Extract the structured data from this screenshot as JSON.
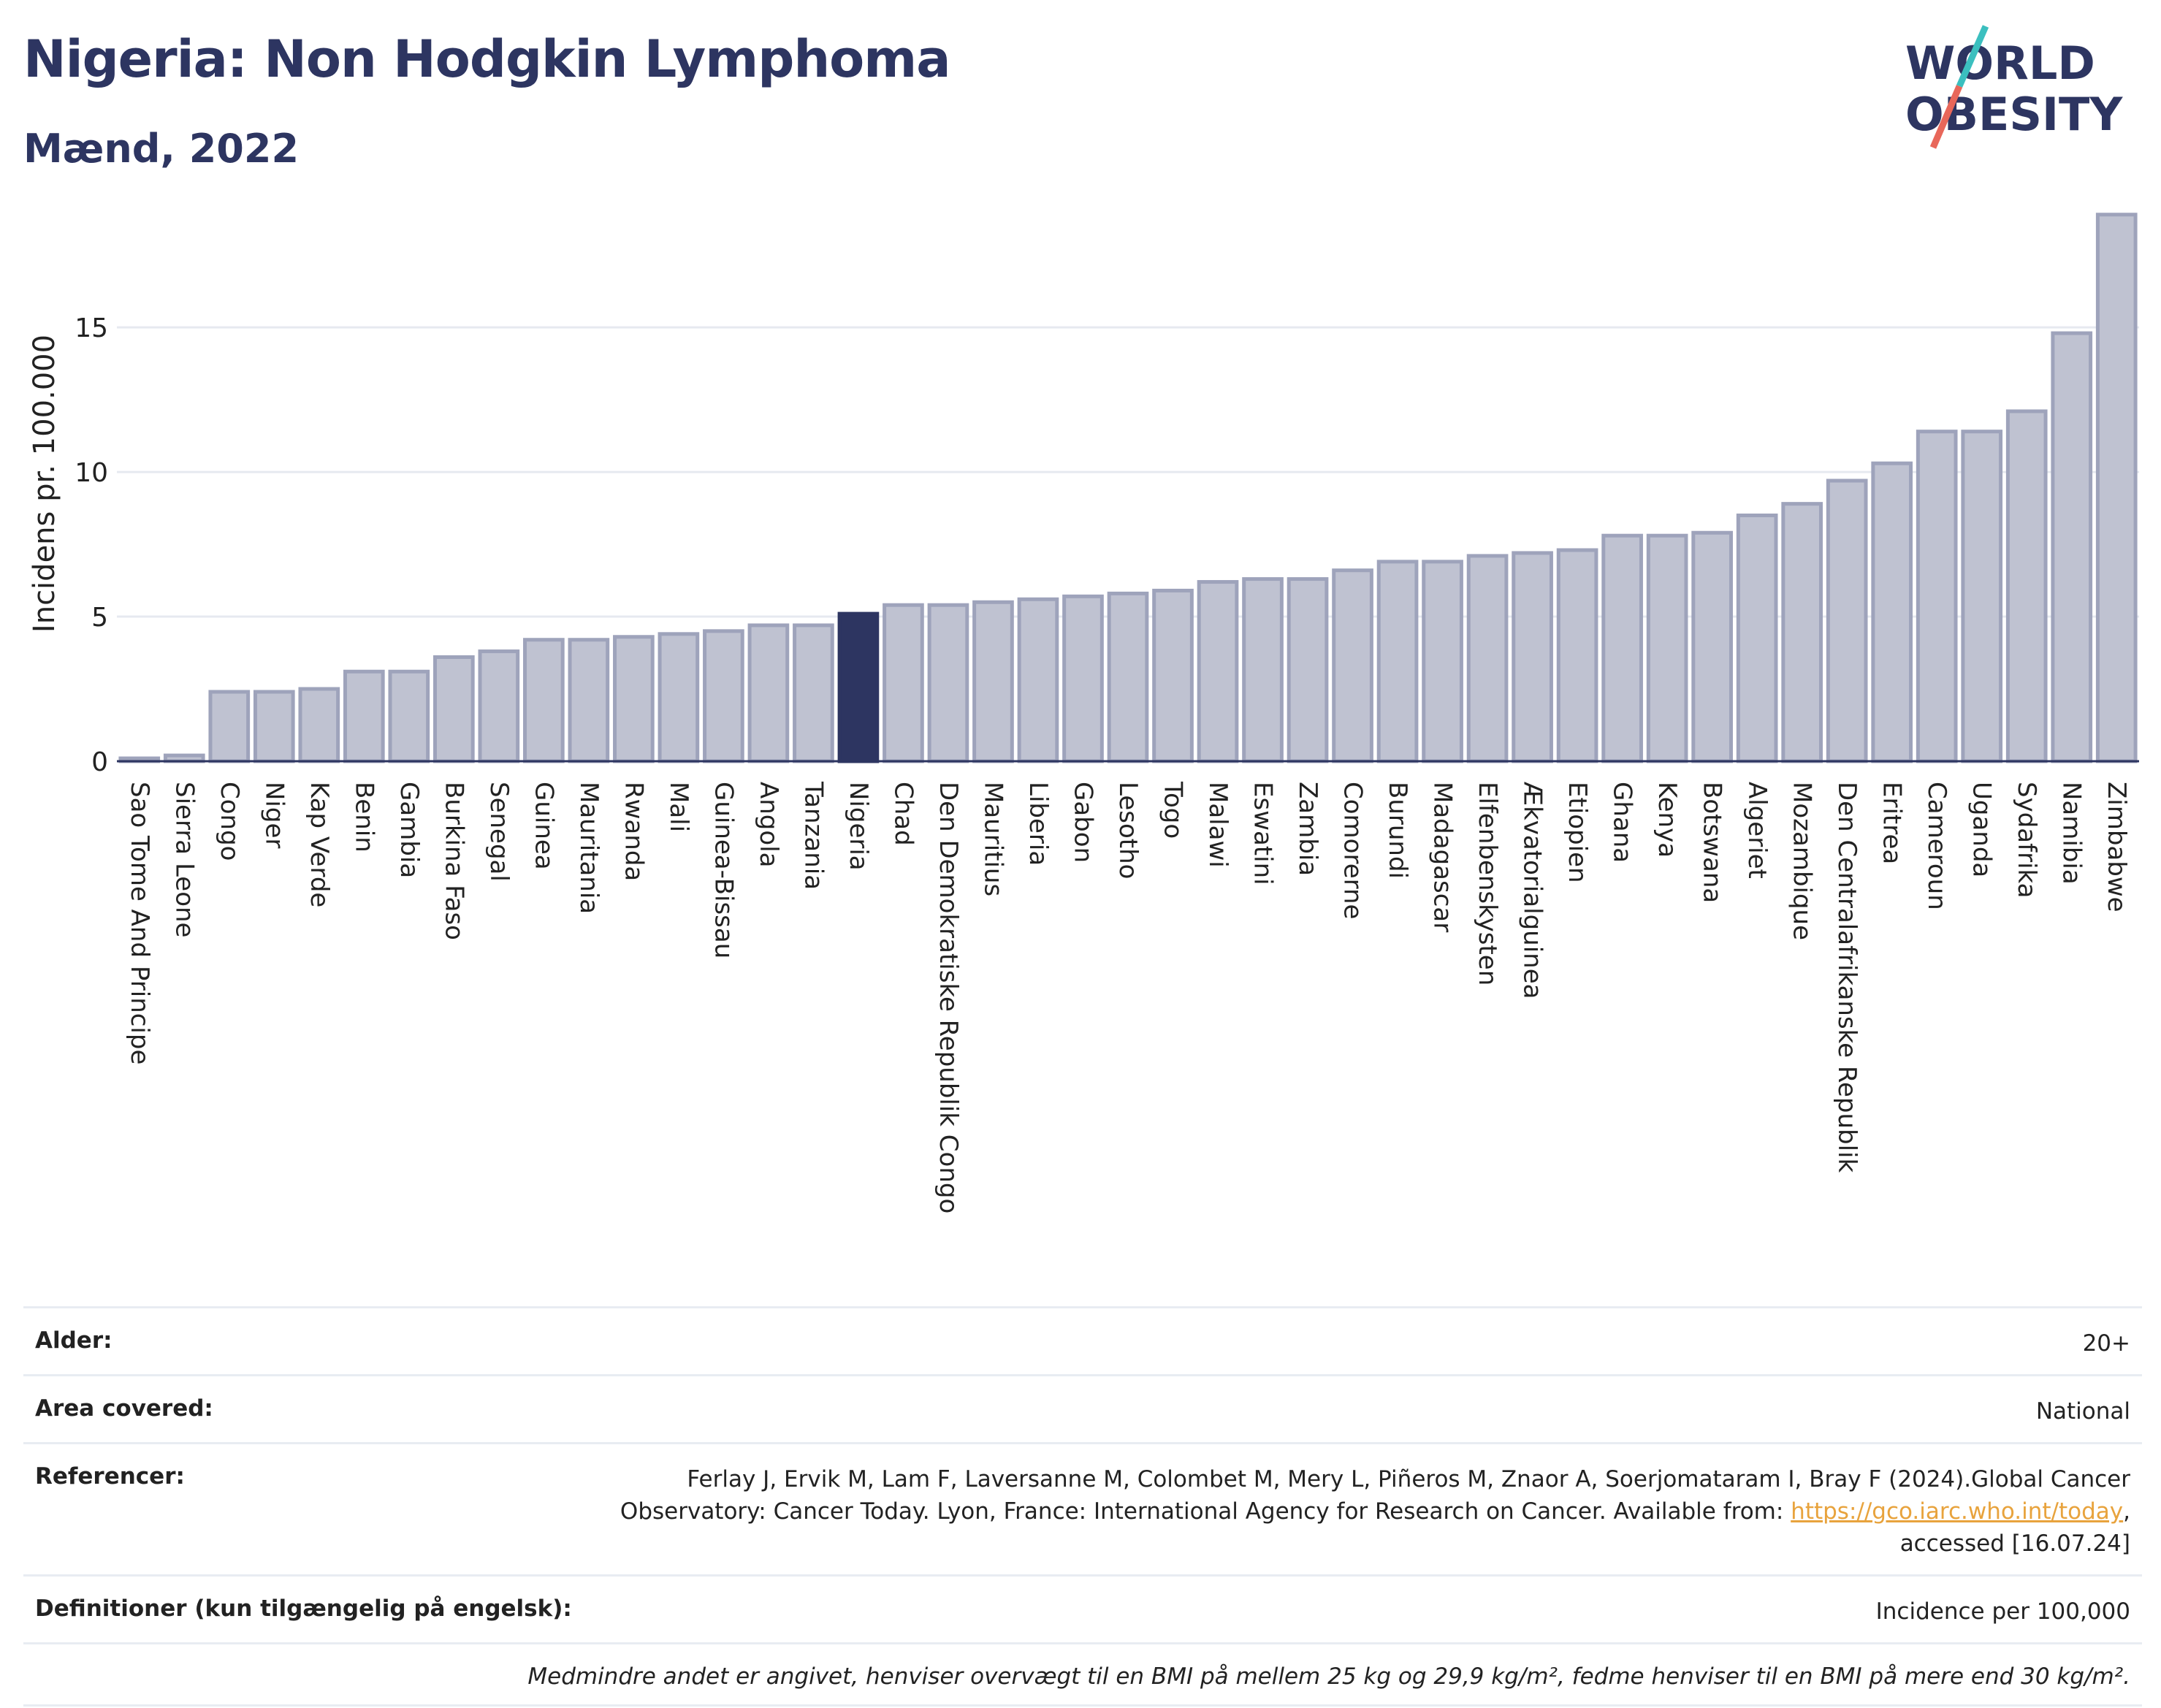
{
  "header": {
    "title": "Nigeria: Non Hodgkin Lymphoma",
    "subtitle": "Mænd, 2022"
  },
  "logo": {
    "line1": "WORLD",
    "line2": "OBESITY",
    "slash_colors": [
      "#3bbfbf",
      "#e8675a"
    ]
  },
  "colors": {
    "bar_fill": "#bfc2d1",
    "bar_stroke": "#9ea3bb",
    "highlight": "#2d3561",
    "text": "#2d3561",
    "link": "#e8a33d"
  },
  "chart_data": {
    "type": "bar",
    "ylabel": "Incidens pr. 100.000",
    "ylim": [
      0,
      19.5
    ],
    "yticks": [
      0,
      5,
      10,
      15
    ],
    "grid": true,
    "highlight": "Nigeria",
    "categories": [
      "Sao Tome And Principe",
      "Sierra Leone",
      "Congo",
      "Niger",
      "Kap Verde",
      "Benin",
      "Gambia",
      "Burkina Faso",
      "Senegal",
      "Guinea",
      "Mauritania",
      "Rwanda",
      "Mali",
      "Guinea-Bissau",
      "Angola",
      "Tanzania",
      "Nigeria",
      "Chad",
      "Den Demokratiske Republik Congo",
      "Mauritius",
      "Liberia",
      "Gabon",
      "Lesotho",
      "Togo",
      "Malawi",
      "Eswatini",
      "Zambia",
      "Comorerne",
      "Burundi",
      "Madagascar",
      "Elfenbenskysten",
      "Ækvatorialguinea",
      "Etiopien",
      "Ghana",
      "Kenya",
      "Botswana",
      "Algeriet",
      "Mozambique",
      "Den Centralafrikanske Republik",
      "Eritrea",
      "Cameroun",
      "Uganda",
      "Sydafrika",
      "Namibia",
      "Zimbabwe"
    ],
    "values": [
      0.1,
      0.2,
      2.4,
      2.4,
      2.5,
      3.1,
      3.1,
      3.6,
      3.8,
      4.2,
      4.2,
      4.3,
      4.4,
      4.5,
      4.7,
      4.7,
      5.1,
      5.4,
      5.4,
      5.5,
      5.6,
      5.7,
      5.8,
      5.9,
      6.2,
      6.3,
      6.3,
      6.6,
      6.9,
      6.9,
      7.1,
      7.2,
      7.3,
      7.8,
      7.8,
      7.9,
      8.5,
      8.9,
      9.7,
      10.3,
      11.4,
      11.4,
      12.1,
      14.8,
      18.9
    ]
  },
  "info": {
    "age_label": "Alder:",
    "age_value": "20+",
    "area_label": "Area covered:",
    "area_value": "National",
    "refs_label": "Referencer:",
    "refs_text1": "Ferlay J, Ervik M, Lam F, Laversanne M, Colombet M, Mery L, Piñeros M, Znaor A, Soerjomataram I, Bray F (2024).Global Cancer",
    "refs_text2": "Observatory: Cancer Today. Lyon, France: International Agency for Research on Cancer. Available from: ",
    "refs_link": "https://gco.iarc.who.int/today",
    "refs_text3": ",",
    "refs_text4": "accessed [16.07.24]",
    "defs_label": "Definitioner (kun tilgængelig på engelsk):",
    "defs_value": "Incidence per 100,000",
    "note": "Medmindre andet er angivet, henviser overvægt til en BMI på mellem 25 kg og 29,9 kg/m², fedme henviser til en BMI på mere end 30 kg/m²."
  }
}
